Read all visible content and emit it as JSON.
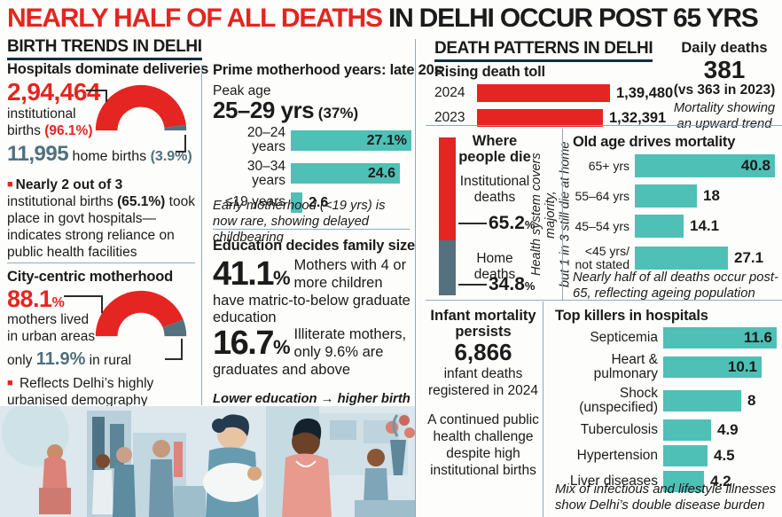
{
  "header": {
    "title_red": "NEARLY HALF OF ALL DEATHS",
    "title_black": " IN DELHI OCCUR POST 65 YRS"
  },
  "colors": {
    "red": "#e42521",
    "teal": "#4ec0b6",
    "slate": "#55707f",
    "divider": "#8fabbc",
    "underline": "#12303f"
  },
  "birth": {
    "section_title": "BIRTH TRENDS IN DELHI",
    "hospitals_heading": "Hospitals dominate deliveries",
    "institutional_number": "2,94,464",
    "institutional_line1": "institutional",
    "institutional_line2": "births ",
    "institutional_pct": "(96.1%)",
    "home_number": "11,995",
    "home_text": " home births ",
    "home_pct": "(3.9%)",
    "govt_bullet": "■",
    "govt_bold1": "Nearly 2 out of 3",
    "govt_text1": " institutional births ",
    "govt_bold2": "(65.1%)",
    "govt_text2": " took place in govt hospitals—indicates strong reliance on public health facilities",
    "city_heading": "City-centric motherhood",
    "urban_pct": "88.1",
    "urban_sym": "%",
    "urban_line1": "mothers lived",
    "urban_line2": "in urban areas",
    "rural_prefix": "only ",
    "rural_pct": "11.9%",
    "rural_suffix": " in rural",
    "city_bullet": "■",
    "city_note": " Reflects Delhi’s highly urbanised demography"
  },
  "motherhood": {
    "heading": "Prime motherhood years: late 20s",
    "peak_label": "Peak age",
    "peak_value": "25–29 yrs",
    "peak_pct": " (37%)",
    "note": "Early motherhood (<19 yrs) is now rare, showing delayed childbearing"
  },
  "education": {
    "heading": "Education decides family size",
    "stat1_num": "41.1",
    "stat1_sym": "%",
    "stat1_text": " Mothers with 4 or more children have matric-to-below graduate education",
    "stat2_num": "16.7",
    "stat2_sym": "%",
    "stat2_text": " Illiterate mothers, only 9.6% are graduates and above",
    "note_line1": "Lower education → higher birth order;",
    "note_line2": "higher education → smaller families"
  },
  "death": {
    "section_title": "DEATH PATTERNS IN DELHI",
    "rising_heading": "Rising death toll",
    "daily_label": "Daily deaths",
    "daily_value": "381",
    "daily_vs": "(vs 363 in 2023)",
    "daily_note": "Mortality showing an upward trend",
    "where_heading": "Where people die",
    "where_inst_label": "Institutional deaths",
    "where_inst_value": "65.2",
    "where_inst_sym": "%",
    "where_home_label": "Home deaths",
    "where_home_value": "34.8",
    "where_home_sym": "%",
    "where_side_line1": "Health system covers majority,",
    "where_side_line2": "but 1 in 3 still die at home",
    "oldage_heading": "Old age drives mortality",
    "oldage_note": "Nearly half of all deaths occur post-65, reflecting ageing population",
    "infant_heading": "Infant mortality persists",
    "infant_value": "6,866",
    "infant_sub": "infant deaths registered in 2024",
    "infant_note": "A continued public health challenge despite high institutional births",
    "killers_heading": "Top killers in hospitals",
    "killers_note": "Mix of infectious and lifestyle illnesses show Delhi’s double disease burden"
  },
  "chart_data": [
    {
      "id": "institutional_vs_home_births",
      "type": "pie",
      "style": "half-donut",
      "title": "Hospitals dominate deliveries",
      "slices": [
        {
          "label": "institutional births",
          "value": 96.1,
          "count": "2,94,464",
          "color": "#e42521"
        },
        {
          "label": "home births",
          "value": 3.9,
          "count": "11,995",
          "color": "#55707f"
        }
      ]
    },
    {
      "id": "urban_vs_rural_mothers",
      "type": "pie",
      "style": "half-donut",
      "title": "City-centric motherhood",
      "slices": [
        {
          "label": "mothers lived in urban areas",
          "value": 88.1,
          "color": "#e42521"
        },
        {
          "label": "in rural",
          "value": 11.9,
          "color": "#55707f"
        }
      ]
    },
    {
      "id": "motherhood_age",
      "type": "bar",
      "title": "Prime motherhood years: late 20s",
      "categories": [
        "20–24 years",
        "30–34 years",
        "≤19 years"
      ],
      "values": [
        27.1,
        24.6,
        2.6
      ],
      "labels": [
        "27.1%",
        "24.6",
        "2.6"
      ],
      "inside": [
        true,
        true,
        false
      ],
      "color": "#4ec0b6",
      "peak": {
        "label": "25–29 yrs",
        "value": 37
      }
    },
    {
      "id": "rising_death_toll",
      "type": "bar",
      "title": "Rising death toll",
      "categories": [
        "2024",
        "2023"
      ],
      "values": [
        139480,
        132391
      ],
      "labels": [
        "1,39,480",
        "1,32,391"
      ],
      "inside": [
        false,
        false
      ],
      "color": "#e42521"
    },
    {
      "id": "where_people_die",
      "type": "bar",
      "style": "stacked-vertical",
      "title": "Where people die",
      "categories": [
        "Institutional deaths",
        "Home deaths"
      ],
      "values": [
        65.2,
        34.8
      ],
      "colors": [
        "#e42521",
        "#55707f"
      ]
    },
    {
      "id": "old_age_mortality",
      "type": "bar",
      "title": "Old age drives mortality",
      "categories": [
        "65+ yrs",
        "55–64 yrs",
        "45–54 yrs",
        "<45 yrs/ not stated"
      ],
      "values": [
        40.8,
        18,
        14.1,
        27.1
      ],
      "labels": [
        "40.8",
        "18",
        "14.1",
        "27.1"
      ],
      "inside": [
        true,
        false,
        false,
        false
      ],
      "color": "#4ec0b6"
    },
    {
      "id": "top_killers_in_hospitals",
      "type": "bar",
      "title": "Top killers in hospitals",
      "categories": [
        "Septicemia",
        "Heart & pulmonary",
        "Shock (unspecified)",
        "Tuberculosis",
        "Hypertension",
        "Liver diseases"
      ],
      "values": [
        11.6,
        10.1,
        8,
        4.9,
        4.5,
        4.2
      ],
      "labels": [
        "11.6",
        "10.1",
        "8",
        "4.9",
        "4.5",
        "4.2"
      ],
      "inside": [
        true,
        true,
        false,
        false,
        false,
        false
      ],
      "color": "#4ec0b6"
    }
  ]
}
